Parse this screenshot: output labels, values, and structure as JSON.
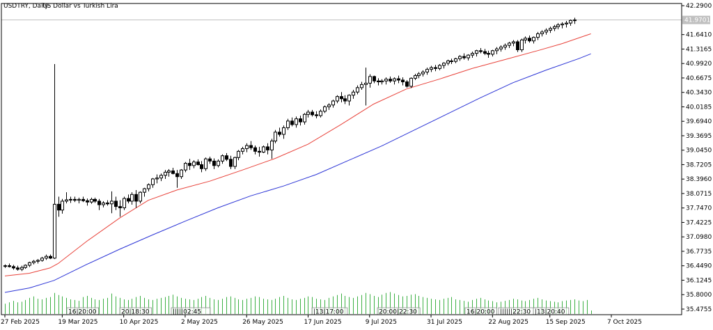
{
  "header": {
    "symbol": "USDTRY, Daily:",
    "description": "US Dollar vs Turkish Lira"
  },
  "colors": {
    "background": "#ffffff",
    "frame": "#000000",
    "candle_outline": "#000000",
    "bull_fill": "#ffffff",
    "bear_fill": "#000000",
    "ma_fast": "#e8423a",
    "ma_slow": "#2b34d6",
    "volume": "#3cb043",
    "bid_line": "#c0c0c0",
    "price_label_bg": "#c0c0c0",
    "price_label_text": "#ffffff"
  },
  "chart_data": {
    "type": "candlestick",
    "symbol": "USDTRY",
    "timeframe": "Daily",
    "ylim": [
      35.35,
      42.34
    ],
    "y_ticks": [
      "42.2900",
      "41.9701",
      "41.6410",
      "41.3165",
      "40.9920",
      "40.6675",
      "40.3430",
      "40.0185",
      "39.6940",
      "39.3695",
      "39.0450",
      "38.7205",
      "38.3960",
      "38.0715",
      "37.7470",
      "37.4225",
      "37.0980",
      "36.7735",
      "36.4490",
      "36.1245",
      "35.8000",
      "35.4755"
    ],
    "current_price": 41.9701,
    "current_price_label": "41.9701",
    "x_tick_labels": [
      "27 Feb 2025",
      "19 Mar 2025",
      "10 Apr 2025",
      "2 May 2025",
      "26 May 2025",
      "17 Jun 2025",
      "9 Jul 2025",
      "31 Jul 2025",
      "22 Aug 2025",
      "15 Sep 2025",
      "7 Oct 2025"
    ],
    "session_markers": [
      "16|20:00",
      "20|18:30",
      "|||||02:45",
      "|13|17:00",
      "20:00|22:30",
      "16|20:00",
      "||||||22:30",
      "|13|20:40"
    ],
    "bars": [
      [
        36.44,
        36.48,
        36.4,
        36.45
      ],
      [
        36.45,
        36.5,
        36.41,
        36.43
      ],
      [
        36.43,
        36.47,
        36.36,
        36.4
      ],
      [
        36.4,
        36.45,
        36.34,
        36.37
      ],
      [
        36.37,
        36.45,
        36.33,
        36.41
      ],
      [
        36.41,
        36.48,
        36.38,
        36.46
      ],
      [
        36.46,
        36.54,
        36.42,
        36.52
      ],
      [
        36.52,
        36.58,
        36.48,
        36.55
      ],
      [
        36.55,
        36.6,
        36.5,
        36.57
      ],
      [
        36.57,
        36.65,
        36.54,
        36.62
      ],
      [
        36.62,
        36.7,
        36.58,
        36.66
      ],
      [
        36.66,
        36.7,
        36.6,
        36.62
      ],
      [
        36.62,
        40.98,
        36.6,
        37.83
      ],
      [
        37.83,
        38.0,
        37.55,
        37.7
      ],
      [
        37.7,
        37.95,
        37.62,
        37.9
      ],
      [
        37.9,
        38.1,
        37.85,
        37.93
      ],
      [
        37.93,
        38.0,
        37.86,
        37.94
      ],
      [
        37.94,
        38.0,
        37.88,
        37.92
      ],
      [
        37.92,
        37.98,
        37.85,
        37.94
      ],
      [
        37.94,
        38.0,
        37.88,
        37.91
      ],
      [
        37.91,
        37.96,
        37.8,
        37.88
      ],
      [
        37.88,
        37.98,
        37.84,
        37.94
      ],
      [
        37.94,
        37.98,
        37.86,
        37.9
      ],
      [
        37.9,
        37.95,
        37.7,
        37.82
      ],
      [
        37.82,
        37.9,
        37.76,
        37.86
      ],
      [
        37.86,
        37.92,
        37.8,
        37.84
      ],
      [
        37.84,
        38.12,
        37.63,
        37.9
      ],
      [
        37.9,
        38.0,
        37.7,
        37.78
      ],
      [
        37.78,
        37.92,
        37.55,
        37.75
      ],
      [
        37.75,
        38.0,
        37.7,
        37.96
      ],
      [
        37.96,
        38.05,
        37.85,
        37.9
      ],
      [
        37.9,
        38.1,
        37.82,
        38.05
      ],
      [
        38.05,
        38.15,
        37.75,
        37.9
      ],
      [
        37.9,
        38.12,
        37.85,
        38.1
      ],
      [
        38.1,
        38.2,
        38.0,
        38.18
      ],
      [
        38.18,
        38.3,
        38.12,
        38.27
      ],
      [
        38.27,
        38.42,
        38.2,
        38.4
      ],
      [
        38.4,
        38.5,
        38.3,
        38.42
      ],
      [
        38.42,
        38.52,
        38.35,
        38.48
      ],
      [
        38.48,
        38.6,
        38.4,
        38.55
      ],
      [
        38.55,
        38.62,
        38.45,
        38.58
      ],
      [
        38.58,
        38.65,
        38.5,
        38.52
      ],
      [
        38.52,
        38.6,
        38.2,
        38.45
      ],
      [
        38.45,
        38.62,
        38.4,
        38.6
      ],
      [
        38.6,
        38.78,
        38.55,
        38.75
      ],
      [
        38.75,
        38.85,
        38.6,
        38.7
      ],
      [
        38.7,
        38.82,
        38.64,
        38.78
      ],
      [
        38.78,
        38.84,
        38.7,
        38.72
      ],
      [
        38.72,
        38.8,
        38.55,
        38.63
      ],
      [
        38.63,
        38.88,
        38.58,
        38.85
      ],
      [
        38.85,
        38.9,
        38.74,
        38.8
      ],
      [
        38.8,
        38.86,
        38.62,
        38.7
      ],
      [
        38.7,
        38.84,
        38.66,
        38.8
      ],
      [
        38.8,
        38.95,
        38.74,
        38.92
      ],
      [
        38.92,
        38.98,
        38.8,
        38.84
      ],
      [
        38.84,
        38.92,
        38.62,
        38.68
      ],
      [
        38.68,
        38.9,
        38.62,
        38.88
      ],
      [
        38.88,
        39.05,
        38.82,
        39.02
      ],
      [
        39.02,
        39.12,
        38.95,
        39.08
      ],
      [
        39.08,
        39.2,
        39.0,
        39.15
      ],
      [
        39.15,
        39.25,
        39.05,
        39.1
      ],
      [
        39.1,
        39.15,
        38.95,
        39.02
      ],
      [
        39.02,
        39.12,
        38.9,
        39.0
      ],
      [
        39.0,
        39.15,
        38.98,
        39.12
      ],
      [
        39.12,
        39.2,
        38.95,
        39.05
      ],
      [
        39.05,
        39.3,
        38.85,
        39.25
      ],
      [
        39.25,
        39.5,
        39.2,
        39.45
      ],
      [
        39.45,
        39.55,
        39.35,
        39.4
      ],
      [
        39.4,
        39.6,
        39.3,
        39.55
      ],
      [
        39.55,
        39.75,
        39.5,
        39.7
      ],
      [
        39.7,
        39.78,
        39.58,
        39.62
      ],
      [
        39.62,
        39.8,
        39.55,
        39.75
      ],
      [
        39.75,
        39.82,
        39.6,
        39.68
      ],
      [
        39.68,
        39.88,
        39.62,
        39.85
      ],
      [
        39.85,
        39.95,
        39.78,
        39.9
      ],
      [
        39.9,
        39.95,
        39.8,
        39.84
      ],
      [
        39.84,
        39.92,
        39.76,
        39.82
      ],
      [
        39.82,
        39.96,
        39.78,
        39.92
      ],
      [
        39.92,
        40.05,
        39.88,
        40.02
      ],
      [
        40.02,
        40.1,
        39.95,
        40.06
      ],
      [
        40.06,
        40.18,
        40.0,
        40.15
      ],
      [
        40.15,
        40.28,
        40.1,
        40.25
      ],
      [
        40.25,
        40.35,
        40.12,
        40.2
      ],
      [
        40.2,
        40.28,
        40.08,
        40.15
      ],
      [
        40.15,
        40.3,
        40.05,
        40.28
      ],
      [
        40.28,
        40.4,
        40.2,
        40.35
      ],
      [
        40.35,
        40.5,
        40.3,
        40.45
      ],
      [
        40.45,
        40.58,
        40.4,
        40.52
      ],
      [
        40.52,
        40.9,
        40.05,
        40.55
      ],
      [
        40.55,
        40.75,
        40.45,
        40.7
      ],
      [
        40.7,
        40.72,
        40.55,
        40.6
      ],
      [
        40.6,
        40.66,
        40.5,
        40.58
      ],
      [
        40.58,
        40.64,
        40.52,
        40.6
      ],
      [
        40.6,
        40.68,
        40.52,
        40.64
      ],
      [
        40.64,
        40.7,
        40.56,
        40.6
      ],
      [
        40.6,
        40.68,
        40.52,
        40.65
      ],
      [
        40.65,
        40.72,
        40.55,
        40.62
      ],
      [
        40.62,
        40.68,
        40.5,
        40.58
      ],
      [
        40.58,
        40.62,
        40.45,
        40.48
      ],
      [
        40.48,
        40.68,
        40.44,
        40.66
      ],
      [
        40.66,
        40.76,
        40.62,
        40.72
      ],
      [
        40.72,
        40.8,
        40.66,
        40.76
      ],
      [
        40.76,
        40.84,
        40.7,
        40.8
      ],
      [
        40.8,
        40.9,
        40.74,
        40.86
      ],
      [
        40.86,
        40.94,
        40.8,
        40.9
      ],
      [
        40.9,
        40.96,
        40.82,
        40.88
      ],
      [
        40.88,
        40.98,
        40.84,
        40.95
      ],
      [
        40.95,
        41.02,
        40.88,
        41.0
      ],
      [
        41.0,
        41.08,
        40.95,
        41.05
      ],
      [
        41.05,
        41.1,
        40.98,
        41.04
      ],
      [
        41.04,
        41.12,
        41.0,
        41.1
      ],
      [
        41.1,
        41.18,
        41.05,
        41.15
      ],
      [
        41.15,
        41.22,
        41.08,
        41.12
      ],
      [
        41.12,
        41.2,
        41.06,
        41.18
      ],
      [
        41.18,
        41.26,
        41.12,
        41.22
      ],
      [
        41.22,
        41.3,
        41.15,
        41.28
      ],
      [
        41.28,
        41.34,
        41.22,
        41.26
      ],
      [
        41.26,
        41.32,
        41.18,
        41.22
      ],
      [
        41.22,
        41.28,
        41.12,
        41.2
      ],
      [
        41.2,
        41.3,
        41.15,
        41.28
      ],
      [
        41.28,
        41.36,
        41.2,
        41.32
      ],
      [
        41.32,
        41.4,
        41.26,
        41.36
      ],
      [
        41.36,
        41.44,
        41.3,
        41.4
      ],
      [
        41.4,
        41.48,
        41.34,
        41.45
      ],
      [
        41.45,
        41.52,
        41.38,
        41.48
      ],
      [
        41.48,
        41.52,
        41.25,
        41.3
      ],
      [
        41.3,
        41.55,
        41.25,
        41.52
      ],
      [
        41.52,
        41.6,
        41.44,
        41.56
      ],
      [
        41.56,
        41.62,
        41.46,
        41.5
      ],
      [
        41.5,
        41.6,
        41.44,
        41.58
      ],
      [
        41.58,
        41.7,
        41.52,
        41.66
      ],
      [
        41.66,
        41.74,
        41.6,
        41.7
      ],
      [
        41.7,
        41.78,
        41.64,
        41.74
      ],
      [
        41.74,
        41.82,
        41.68,
        41.78
      ],
      [
        41.78,
        41.86,
        41.72,
        41.82
      ],
      [
        41.82,
        41.9,
        41.76,
        41.86
      ],
      [
        41.86,
        41.92,
        41.78,
        41.88
      ],
      [
        41.88,
        41.95,
        41.8,
        41.9
      ],
      [
        41.9,
        41.98,
        41.84,
        41.96
      ],
      [
        41.96,
        42.02,
        41.88,
        41.97
      ]
    ],
    "ma_fast_points": [
      [
        0,
        36.22
      ],
      [
        6,
        36.28
      ],
      [
        11,
        36.4
      ],
      [
        13,
        36.5
      ],
      [
        20,
        37.0
      ],
      [
        28,
        37.52
      ],
      [
        35,
        37.92
      ],
      [
        42,
        38.15
      ],
      [
        50,
        38.35
      ],
      [
        58,
        38.6
      ],
      [
        66,
        38.86
      ],
      [
        74,
        39.18
      ],
      [
        82,
        39.62
      ],
      [
        90,
        40.08
      ],
      [
        98,
        40.42
      ],
      [
        106,
        40.64
      ],
      [
        114,
        40.88
      ],
      [
        122,
        41.08
      ],
      [
        130,
        41.28
      ],
      [
        136,
        41.44
      ],
      [
        143,
        41.66
      ]
    ],
    "ma_slow_points": [
      [
        0,
        35.85
      ],
      [
        6,
        35.95
      ],
      [
        12,
        36.12
      ],
      [
        20,
        36.48
      ],
      [
        28,
        36.82
      ],
      [
        36,
        37.14
      ],
      [
        44,
        37.45
      ],
      [
        52,
        37.75
      ],
      [
        60,
        38.02
      ],
      [
        68,
        38.24
      ],
      [
        76,
        38.5
      ],
      [
        84,
        38.82
      ],
      [
        92,
        39.14
      ],
      [
        100,
        39.5
      ],
      [
        108,
        39.86
      ],
      [
        116,
        40.22
      ],
      [
        124,
        40.56
      ],
      [
        132,
        40.84
      ],
      [
        140,
        41.1
      ],
      [
        143,
        41.21
      ]
    ],
    "volume_relative": [
      0.35,
      0.4,
      0.45,
      0.4,
      0.42,
      0.48,
      0.55,
      0.6,
      0.52,
      0.5,
      0.55,
      0.58,
      0.72,
      0.65,
      0.6,
      0.55,
      0.5,
      0.48,
      0.45,
      0.58,
      0.62,
      0.55,
      0.5,
      0.48,
      0.52,
      0.55,
      0.7,
      0.6,
      0.55,
      0.5,
      0.48,
      0.52,
      0.58,
      0.62,
      0.55,
      0.5,
      0.48,
      0.52,
      0.55,
      0.58,
      0.62,
      0.66,
      0.6,
      0.55,
      0.52,
      0.5,
      0.48,
      0.52,
      0.58,
      0.62,
      0.55,
      0.5,
      0.48,
      0.52,
      0.58,
      0.6,
      0.55,
      0.5,
      0.48,
      0.52,
      0.55,
      0.6,
      0.58,
      0.52,
      0.5,
      0.48,
      0.52,
      0.58,
      0.62,
      0.55,
      0.5,
      0.48,
      0.52,
      0.55,
      0.6,
      0.58,
      0.52,
      0.5,
      0.48,
      0.55,
      0.6,
      0.65,
      0.7,
      0.62,
      0.58,
      0.55,
      0.6,
      0.65,
      0.72,
      0.68,
      0.62,
      0.58,
      0.66,
      0.72,
      0.75,
      0.7,
      0.65,
      0.6,
      0.62,
      0.66,
      0.68,
      0.62,
      0.58,
      0.55,
      0.52,
      0.5,
      0.48,
      0.52,
      0.55,
      0.58,
      0.5,
      0.48,
      0.45,
      0.42,
      0.48,
      0.52,
      0.55,
      0.5,
      0.46,
      0.44,
      0.4,
      0.42,
      0.45,
      0.48,
      0.52,
      0.5,
      0.46,
      0.44,
      0.48,
      0.52,
      0.55,
      0.5,
      0.46,
      0.44,
      0.42,
      0.4,
      0.44,
      0.46,
      0.48,
      0.5,
      0.46,
      0.44,
      0.48,
      0.12
    ]
  }
}
